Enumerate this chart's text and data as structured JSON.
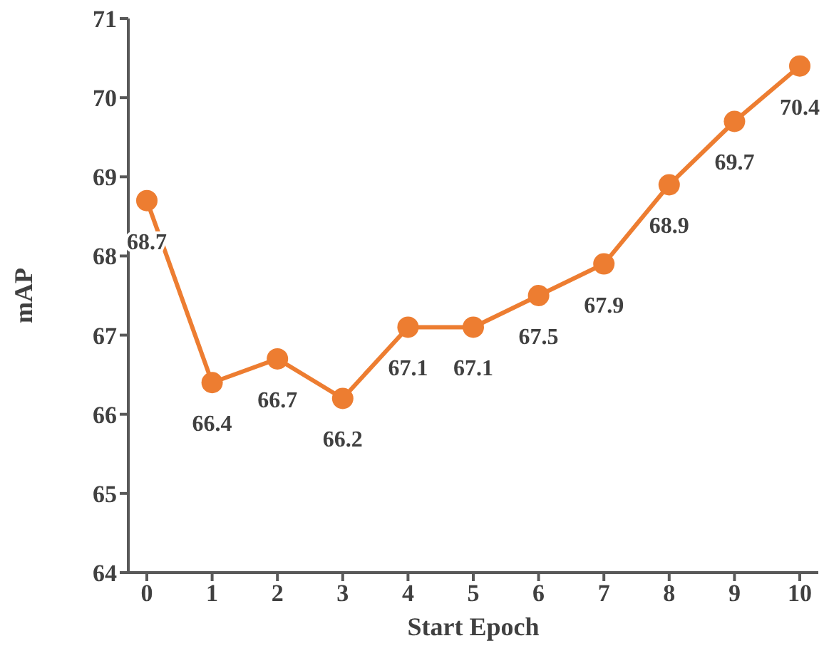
{
  "chart_data": {
    "type": "line",
    "xlabel": "Start Epoch",
    "ylabel": "mAP",
    "categories": [
      "0",
      "1",
      "2",
      "3",
      "4",
      "5",
      "6",
      "7",
      "8",
      "9",
      "10"
    ],
    "series": [
      {
        "color": "#ed7d31",
        "values": [
          68.7,
          66.4,
          66.7,
          66.2,
          67.1,
          67.1,
          67.5,
          67.9,
          68.9,
          69.7,
          70.4
        ]
      }
    ],
    "ylim": [
      64,
      71
    ],
    "yticks": [
      64,
      65,
      66,
      67,
      68,
      69,
      70,
      71
    ],
    "grid": false,
    "legend": false,
    "marker": "circle",
    "line_style": "solid",
    "data_labels": true
  }
}
